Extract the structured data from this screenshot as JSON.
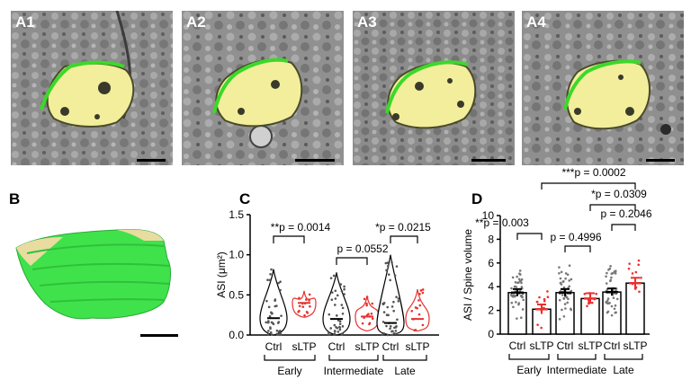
{
  "em_panels": [
    {
      "label": "A1"
    },
    {
      "label": "A2"
    },
    {
      "label": "A3"
    },
    {
      "label": "A4"
    }
  ],
  "panel_b": {
    "label": "B"
  },
  "colors": {
    "synapse_fill": "#f3ef9a",
    "psd_line": "#39d82a",
    "mesh_green": "#3fe24a",
    "mesh_tan": "#e8dca0",
    "sltp_red": "#e8312e"
  },
  "chart_data": [
    {
      "panel": "C",
      "type": "violin",
      "ylabel": "ASI (μm²)",
      "ylim": [
        0,
        1.5
      ],
      "yticks": [
        "0.0",
        "0.5",
        "1.0",
        "1.5"
      ],
      "categories": [
        "Ctrl",
        "sLTP",
        "Ctrl",
        "sLTP",
        "Ctrl",
        "sLTP"
      ],
      "groups": [
        "Early",
        "Intermediate",
        "Late"
      ],
      "medians": [
        0.21,
        0.4,
        0.2,
        0.23,
        0.15,
        0.2
      ],
      "ranges": [
        [
          0.0,
          0.82
        ],
        [
          0.22,
          0.55
        ],
        [
          0.0,
          0.78
        ],
        [
          0.05,
          0.49
        ],
        [
          0.0,
          1.0
        ],
        [
          0.05,
          0.57
        ]
      ],
      "comparisons": [
        {
          "label": "**p = 0.0014",
          "group": "Early"
        },
        {
          "label": "p = 0.0552",
          "group": "Intermediate"
        },
        {
          "label": "*p = 0.0215",
          "group": "Late"
        }
      ]
    },
    {
      "panel": "D",
      "type": "bar",
      "ylabel": "ASI / Spine volume",
      "ylim": [
        0,
        10
      ],
      "yticks": [
        "0",
        "2",
        "4",
        "6",
        "8",
        "10"
      ],
      "categories": [
        "Ctrl",
        "sLTP",
        "Ctrl",
        "sLTP",
        "Ctrl",
        "sLTP"
      ],
      "groups": [
        "Early",
        "Intermediate",
        "Late"
      ],
      "values": [
        3.5,
        2.1,
        3.5,
        3.0,
        3.55,
        4.3
      ],
      "errors": [
        0.3,
        0.4,
        0.3,
        0.45,
        0.3,
        0.45
      ],
      "comparisons": [
        {
          "label": "**p = 0.003",
          "between": "Early Ctrl vs sLTP"
        },
        {
          "label": "p = 0.4996",
          "between": "Intermediate Ctrl vs sLTP"
        },
        {
          "label": "p = 0.2046",
          "between": "Late Ctrl vs sLTP"
        },
        {
          "label": "*p = 0.0309",
          "between": "Intermediate sLTP vs Late sLTP"
        },
        {
          "label": "***p = 0.0002",
          "between": "Early sLTP vs Late sLTP"
        }
      ]
    }
  ]
}
